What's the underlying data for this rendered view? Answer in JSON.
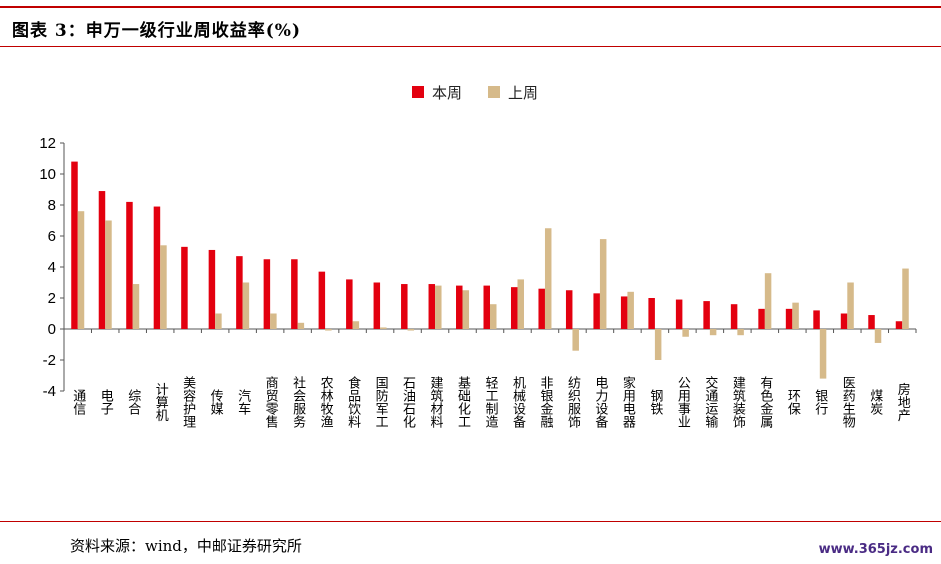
{
  "header": {
    "title": "图表 3：申万一级行业周收益率(%)"
  },
  "footer": {
    "source": "资料来源：wind，中邮证券研究所",
    "watermark": "www.365jz.com"
  },
  "colors": {
    "accent": "#c00000",
    "this_week": "#e3000f",
    "last_week": "#d6ba8a"
  },
  "chart_data": {
    "type": "bar",
    "title": "申万一级行业周收益率(%)",
    "xlabel": "",
    "ylabel": "",
    "ylim": [
      -4,
      12
    ],
    "yticks": [
      -4,
      -2,
      0,
      2,
      4,
      6,
      8,
      10,
      12
    ],
    "grid": false,
    "legend_position": "top-center",
    "categories": [
      "通信",
      "电子",
      "综合",
      "计算机",
      "美容护理",
      "传媒",
      "汽车",
      "商贸零售",
      "社会服务",
      "农林牧渔",
      "食品饮料",
      "国防军工",
      "石油石化",
      "建筑材料",
      "基础化工",
      "轻工制造",
      "机械设备",
      "非银金融",
      "纺织服饰",
      "电力设备",
      "家用电器",
      "钢铁",
      "公用事业",
      "交通运输",
      "建筑装饰",
      "有色金属",
      "环保",
      "银行",
      "医药生物",
      "煤炭",
      "房地产"
    ],
    "series": [
      {
        "name": "本周",
        "color": "#e3000f",
        "values": [
          10.8,
          8.9,
          8.2,
          7.9,
          5.3,
          5.1,
          4.7,
          4.5,
          4.5,
          3.7,
          3.2,
          3.0,
          2.9,
          2.9,
          2.8,
          2.8,
          2.7,
          2.6,
          2.5,
          2.3,
          2.1,
          2.0,
          1.9,
          1.8,
          1.6,
          1.3,
          1.3,
          1.2,
          1.0,
          0.9,
          0.5
        ]
      },
      {
        "name": "上周",
        "color": "#d6ba8a",
        "values": [
          7.6,
          7.0,
          2.9,
          5.4,
          0.0,
          1.0,
          3.0,
          1.0,
          0.4,
          -0.1,
          0.5,
          0.1,
          -0.1,
          2.8,
          2.5,
          1.6,
          3.2,
          6.5,
          -1.4,
          5.8,
          2.4,
          -2.0,
          -0.5,
          -0.4,
          -0.4,
          3.6,
          1.7,
          -3.2,
          3.0,
          -0.9,
          3.9
        ]
      }
    ]
  }
}
